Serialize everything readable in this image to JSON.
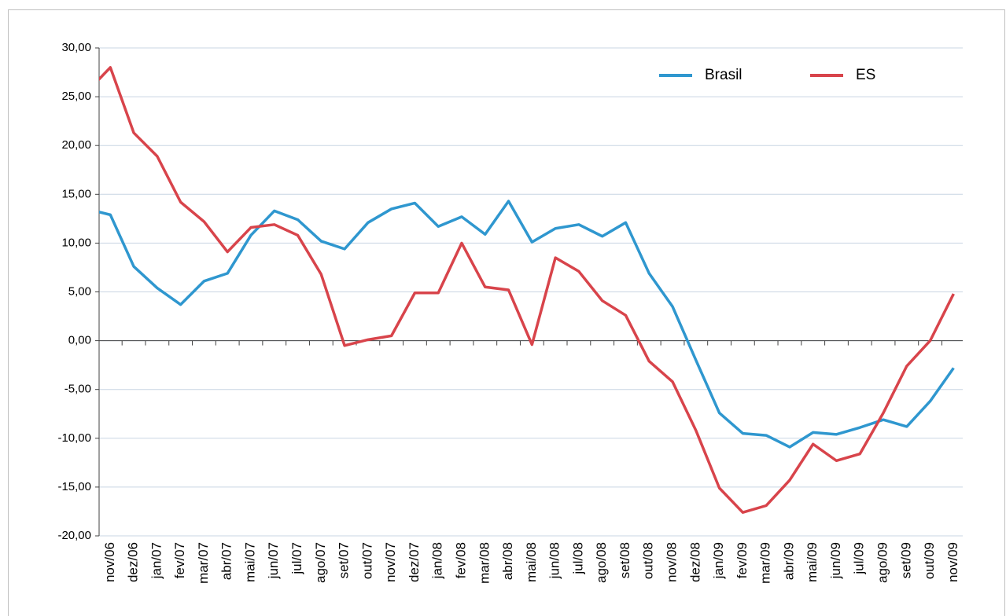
{
  "chart_data": {
    "type": "line",
    "categories": [
      null,
      "nov/06",
      "dez/06",
      "jan/07",
      "fev/07",
      "mar/07",
      "abr/07",
      "mai/07",
      "jun/07",
      "jul/07",
      "ago/07",
      "set/07",
      "out/07",
      "nov/07",
      "dez/07",
      "jan/08",
      "fev/08",
      "mar/08",
      "abr/08",
      "mai/08",
      "jun/08",
      "jul/08",
      "ago/08",
      "set/08",
      "out/08",
      "nov/08",
      "dez/08",
      "jan/09",
      "fev/09",
      "mar/09",
      "abr/09",
      "mai/09",
      "jun/09",
      "jul/09",
      "ago/09",
      "set/09",
      "out/09",
      "nov/09"
    ],
    "series": [
      {
        "name": "Brasil",
        "color": "#2f97cf",
        "values": [
          13.5,
          12.9,
          7.6,
          5.4,
          3.7,
          6.1,
          6.9,
          10.8,
          13.3,
          12.4,
          10.2,
          9.4,
          12.1,
          13.5,
          14.1,
          11.7,
          12.7,
          10.9,
          14.3,
          10.1,
          11.5,
          11.9,
          10.7,
          12.1,
          6.9,
          3.5,
          -2.0,
          -7.4,
          -9.5,
          -9.7,
          -10.9,
          -9.4,
          -9.6,
          -8.9,
          -8.1,
          -8.8,
          -6.2,
          -2.8
        ]
      },
      {
        "name": "ES",
        "color": "#d8444b",
        "values": [
          25.5,
          28.0,
          21.3,
          18.9,
          14.2,
          12.2,
          9.1,
          11.6,
          11.9,
          10.8,
          6.8,
          -0.5,
          0.1,
          0.5,
          4.9,
          4.9,
          10.0,
          5.5,
          5.2,
          -0.4,
          8.5,
          7.1,
          4.1,
          2.6,
          -2.1,
          -4.2,
          -9.2,
          -15.1,
          -17.6,
          -16.9,
          -14.3,
          -10.6,
          -12.3,
          -11.6,
          -7.4,
          -2.6,
          0.0,
          4.8
        ]
      }
    ],
    "ylim": [
      -20,
      30
    ],
    "yticks": [
      {
        "value": -20,
        "label": "-20,00"
      },
      {
        "value": -15,
        "label": "-15,00"
      },
      {
        "value": -10,
        "label": "-10,00"
      },
      {
        "value": -5,
        "label": "-5,00"
      },
      {
        "value": 0,
        "label": "0,00"
      },
      {
        "value": 5,
        "label": "5,00"
      },
      {
        "value": 10,
        "label": "10,00"
      },
      {
        "value": 15,
        "label": "15,00"
      },
      {
        "value": 20,
        "label": "20,00"
      },
      {
        "value": 25,
        "label": "25,00"
      },
      {
        "value": 30,
        "label": "30,00"
      }
    ],
    "grid": true,
    "legend": "top-right"
  }
}
